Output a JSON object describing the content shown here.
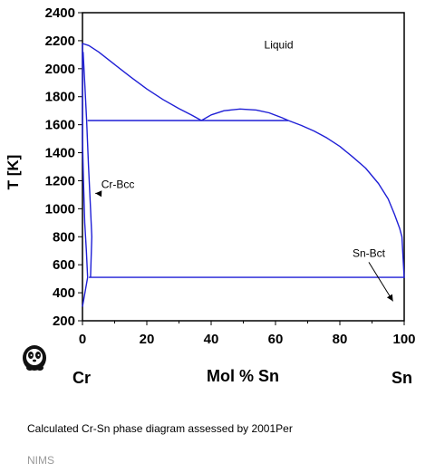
{
  "chart_data": {
    "type": "line",
    "xlabel": "Mol % Sn",
    "ylabel": "T [K]",
    "xlim": [
      0,
      100
    ],
    "ylim": [
      200,
      2400
    ],
    "x_ticks": [
      0,
      20,
      40,
      60,
      80,
      100
    ],
    "y_ticks": [
      200,
      400,
      600,
      800,
      1000,
      1200,
      1400,
      1600,
      1800,
      2000,
      2200,
      2400
    ],
    "endmember_left": "Cr",
    "endmember_right": "Sn",
    "grid": false,
    "phase_labels": [
      {
        "text": "Liquid",
        "x": 61,
        "y": 2145
      },
      {
        "text": "Cr-Bcc",
        "x": 11,
        "y": 1148,
        "arrow_to": [
          4,
          1110
        ]
      },
      {
        "text": "Sn-Bct",
        "x": 89,
        "y": 657,
        "arrow_to": [
          96.5,
          340
        ]
      }
    ],
    "series": [
      {
        "id": "liquidus-left",
        "points": [
          [
            0,
            2180
          ],
          [
            2,
            2165
          ],
          [
            5,
            2120
          ],
          [
            10,
            2030
          ],
          [
            15,
            1940
          ],
          [
            20,
            1855
          ],
          [
            25,
            1780
          ],
          [
            30,
            1715
          ],
          [
            34,
            1668
          ],
          [
            37,
            1630
          ]
        ]
      },
      {
        "id": "miscibility-gap",
        "points": [
          [
            37,
            1630
          ],
          [
            40,
            1670
          ],
          [
            44,
            1700
          ],
          [
            49,
            1712
          ],
          [
            54,
            1705
          ],
          [
            58,
            1685
          ],
          [
            62,
            1650
          ],
          [
            64,
            1630
          ]
        ]
      },
      {
        "id": "liquidus-right",
        "points": [
          [
            64,
            1630
          ],
          [
            68,
            1595
          ],
          [
            72,
            1555
          ],
          [
            76,
            1505
          ],
          [
            80,
            1445
          ],
          [
            84,
            1370
          ],
          [
            88,
            1290
          ],
          [
            92,
            1180
          ],
          [
            95,
            1070
          ],
          [
            97,
            960
          ],
          [
            98.6,
            860
          ],
          [
            99.3,
            800
          ],
          [
            100,
            505
          ]
        ]
      },
      {
        "id": "monotectic",
        "points": [
          [
            1.6,
            1630
          ],
          [
            64,
            1630
          ]
        ]
      },
      {
        "id": "eutectic",
        "points": [
          [
            2,
            510
          ],
          [
            100,
            510
          ]
        ]
      },
      {
        "id": "bcc-solvus-outer",
        "points": [
          [
            0.2,
            2120
          ],
          [
            0.7,
            1900
          ],
          [
            1.3,
            1630
          ],
          [
            1.9,
            1300
          ],
          [
            2.5,
            1000
          ],
          [
            2.9,
            800
          ],
          [
            2.5,
            510
          ]
        ]
      },
      {
        "id": "bcc-solvus-inner",
        "points": [
          [
            0,
            2180
          ],
          [
            0,
            1500
          ],
          [
            0.3,
            1200
          ],
          [
            0.7,
            900
          ],
          [
            1.2,
            700
          ],
          [
            1.6,
            510
          ],
          [
            0,
            300
          ]
        ]
      }
    ]
  },
  "caption": "Calculated Cr-Sn phase diagram assessed by 2001Per",
  "source": "NIMS"
}
